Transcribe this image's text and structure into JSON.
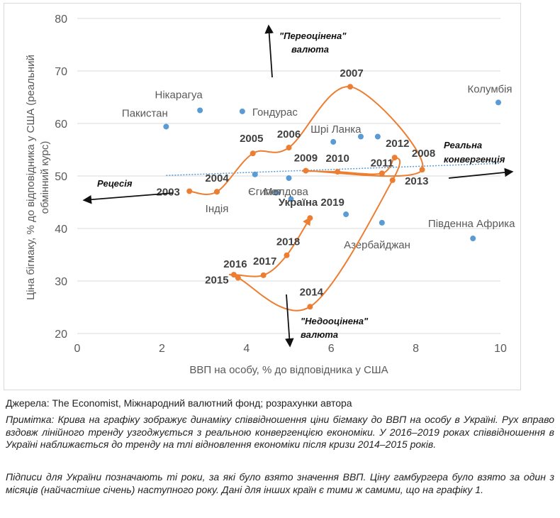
{
  "chart_data": {
    "type": "scatter",
    "title": "",
    "xlabel": "ВВП на особу, % до відповідника у США",
    "ylabel_lines": [
      "Ціна бігмаку, % до відповідника у США (реальний",
      "обмінний курс)"
    ],
    "xlim": [
      0,
      10
    ],
    "ylim": [
      20,
      80
    ],
    "x_ticks": [
      "0",
      "2",
      "4",
      "6",
      "8",
      "10"
    ],
    "y_ticks": [
      "20",
      "30",
      "40",
      "50",
      "60",
      "70",
      "80"
    ],
    "grid": "horizontal",
    "colors": {
      "countries": "#5b9bd5",
      "ukraine": "#ed7d31",
      "trend": "#5b9bd5",
      "axis": "#d9d9d9"
    },
    "countries": [
      {
        "name": "Пакистан",
        "x": 2.1,
        "y": 59.4
      },
      {
        "name": "Нікарагуа",
        "x": 2.9,
        "y": 62.5
      },
      {
        "name": "Гондурас",
        "x": 3.9,
        "y": 62.3
      },
      {
        "name": "Шрі Ланка",
        "x": 6.05,
        "y": 56.5
      },
      {
        "name": "",
        "x": 6.7,
        "y": 57.5
      },
      {
        "name": "",
        "x": 7.1,
        "y": 57.5
      },
      {
        "name": "Колумбія",
        "x": 9.95,
        "y": 64.0
      },
      {
        "name": "Індія",
        "x": 3.3,
        "y": 47.0
      },
      {
        "name": "Єгипет",
        "x": 4.2,
        "y": 50.3
      },
      {
        "name": "",
        "x": 4.7,
        "y": 46.8
      },
      {
        "name": "Молдова",
        "x": 5.0,
        "y": 49.6
      },
      {
        "name": "",
        "x": 5.05,
        "y": 45.6
      },
      {
        "name": "Азербайджан",
        "x": 6.35,
        "y": 42.7
      },
      {
        "name": "",
        "x": 7.2,
        "y": 41.1
      },
      {
        "name": "Південна Африка",
        "x": 9.35,
        "y": 38.1
      }
    ],
    "ukraine": [
      {
        "year": "2003",
        "x": 2.65,
        "y": 47.1
      },
      {
        "year": "2004",
        "x": 3.3,
        "y": 47.0
      },
      {
        "year": "2005",
        "x": 4.15,
        "y": 54.3
      },
      {
        "year": "2006",
        "x": 5.0,
        "y": 55.4
      },
      {
        "year": "2007",
        "x": 6.45,
        "y": 67.0
      },
      {
        "year": "2008",
        "x": 8.15,
        "y": 51.2
      },
      {
        "year": "2009",
        "x": 5.4,
        "y": 51.0
      },
      {
        "year": "2010",
        "x": 6.15,
        "y": 50.8
      },
      {
        "year": "2011",
        "x": 7.2,
        "y": 50.5
      },
      {
        "year": "2012",
        "x": 7.5,
        "y": 53.5
      },
      {
        "year": "2013",
        "x": 7.45,
        "y": 49.2
      },
      {
        "year": "2014",
        "x": 5.5,
        "y": 25.1
      },
      {
        "year": "2015",
        "x": 3.8,
        "y": 30.6
      },
      {
        "year": "2016",
        "x": 3.7,
        "y": 31.2
      },
      {
        "year": "2017",
        "x": 4.4,
        "y": 31.1
      },
      {
        "year": "2018",
        "x": 4.95,
        "y": 34.9
      },
      {
        "year": "Україна 2019",
        "x": 5.5,
        "y": 42.0
      }
    ],
    "trendline": {
      "x": [
        2.1,
        10.0
      ],
      "y": [
        50.1,
        52.4
      ]
    },
    "annotations": {
      "overvalued": [
        "\"Переоцінена\"",
        "валюта"
      ],
      "undervalued": [
        "\"Недооцінена\"",
        "валюта"
      ],
      "recession": "Рецесія",
      "convergence": [
        "Реальна",
        "конвергенція"
      ]
    }
  },
  "notes": {
    "source": "Джерела: The Economist, Міжнародний валютний фонд; розрахунки автора",
    "note1": "Примітка: Крива на графіку зображує динаміку співвідношення ціни бігмаку до ВВП на особу в Україні. Рух вправо вздовж лінійного тренду узгоджується з реальною конвергенцією економіки. У 2016–2019 роках співвідношення в Україні наближається до тренду на тлі відновлення економіки після кризи 2014–2015 років.",
    "note2": "Підписи для України позначають ті роки, за які було взято значення ВВП. Ціну гамбургера було взято за один з місяців (найчастіше січень) наступного року. Дані для інших країн є тими ж самими, що на графіку 1."
  }
}
